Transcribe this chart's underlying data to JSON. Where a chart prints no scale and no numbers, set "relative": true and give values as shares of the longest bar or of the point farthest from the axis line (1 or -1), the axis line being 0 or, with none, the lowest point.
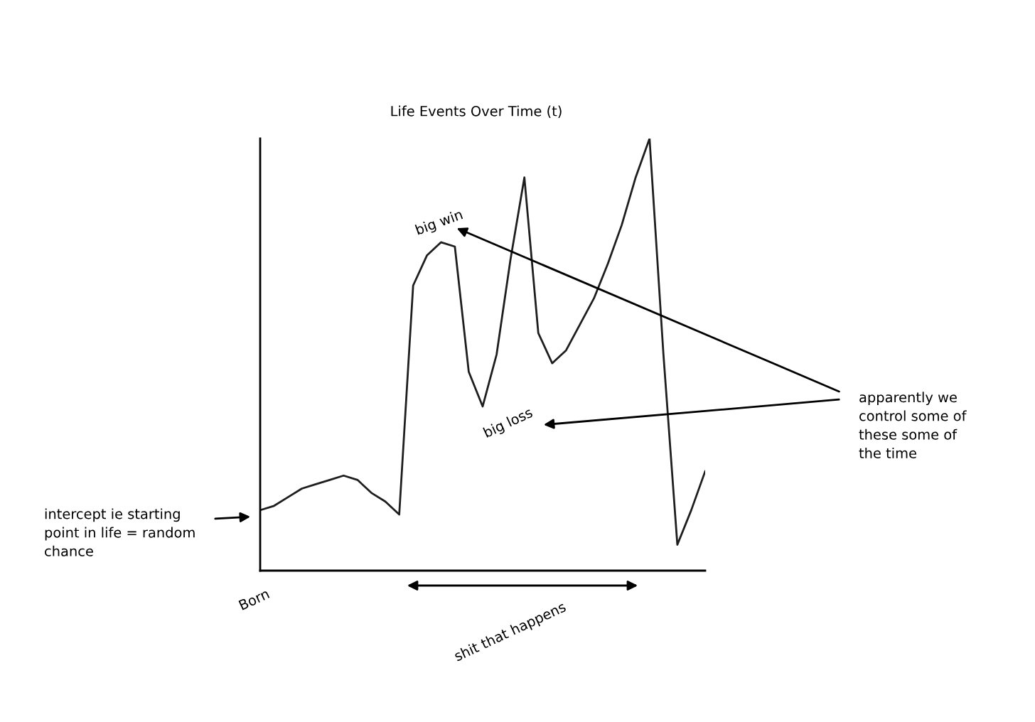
{
  "chart_data": {
    "type": "line",
    "title": "Life Events Over Time (t)",
    "relative": true,
    "color": "#1e1e1e",
    "legend": false,
    "marker": "none",
    "line_style": "solid",
    "categories": [
      null,
      null,
      null,
      null,
      null,
      null,
      null,
      null,
      null,
      null,
      null,
      null,
      null,
      null,
      null,
      null,
      null,
      null,
      null,
      null,
      null,
      null,
      null,
      null,
      null,
      null,
      null,
      null,
      null,
      null,
      null,
      null,
      null
    ],
    "values": [
      0.14,
      0.15,
      0.17,
      0.19,
      0.2,
      0.21,
      0.22,
      0.21,
      0.18,
      0.16,
      0.13,
      0.66,
      0.73,
      0.76,
      0.75,
      0.46,
      0.38,
      0.5,
      0.72,
      0.91,
      0.55,
      0.48,
      0.51,
      0.57,
      0.63,
      0.71,
      0.8,
      0.91,
      1,
      0.5,
      0.06,
      0.14,
      0.23
    ],
    "annotations": [
      "big win",
      "big loss",
      "apparently we\ncontrol some of\nthese some of\nthe time",
      "intercept ie starting\npoint in life = random\nchance",
      "Born",
      "shit that happens"
    ]
  }
}
